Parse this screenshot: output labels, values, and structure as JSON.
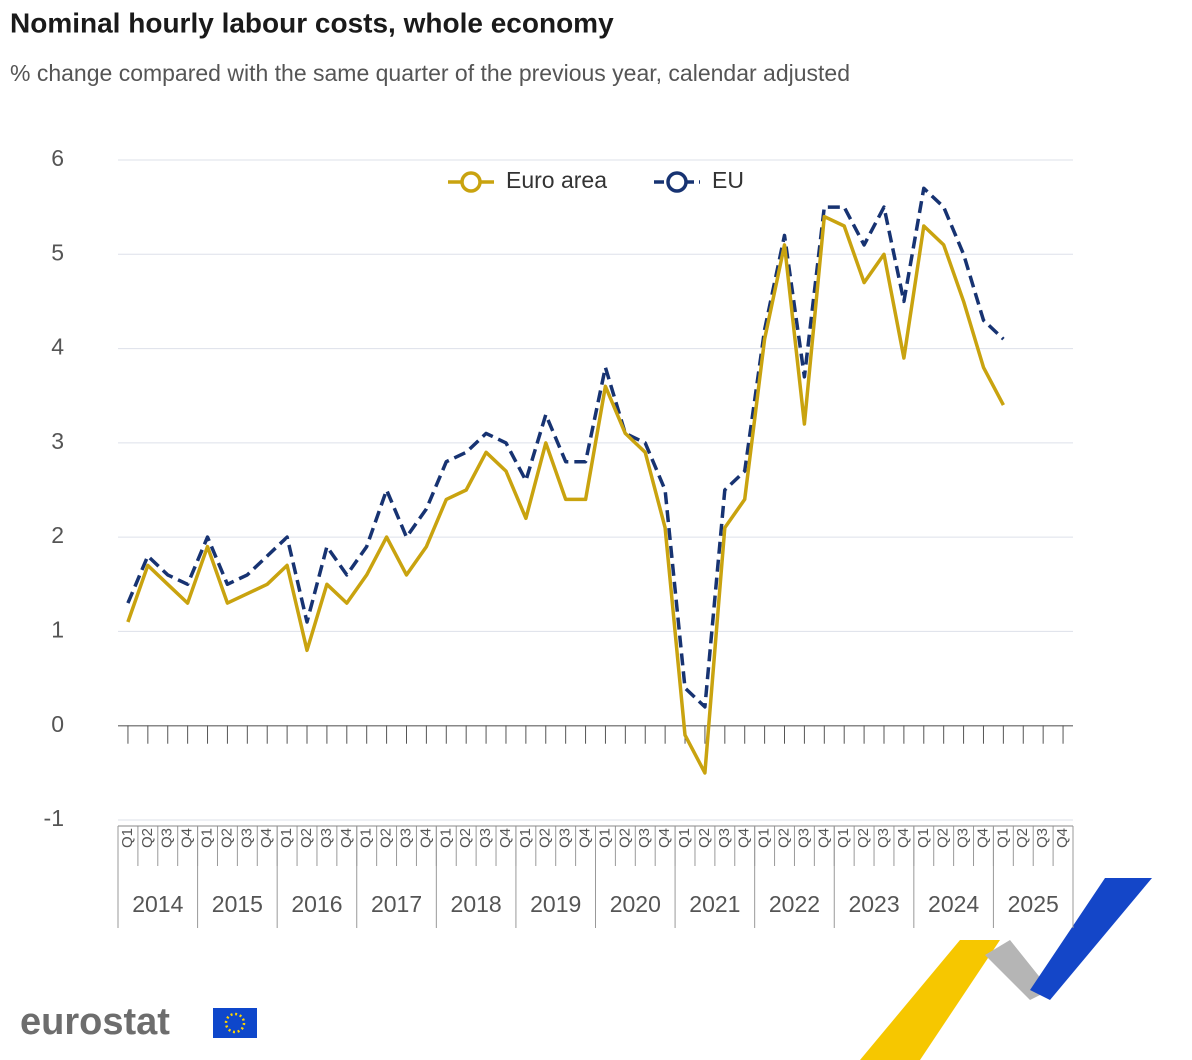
{
  "chart_data": {
    "type": "line",
    "title": "Nominal hourly labour costs, whole economy",
    "subtitle": "% change compared with the same quarter of the previous year, calendar adjusted",
    "categories": [
      "Q1",
      "Q2",
      "Q3",
      "Q4",
      "Q1",
      "Q2",
      "Q3",
      "Q4",
      "Q1",
      "Q2",
      "Q3",
      "Q4",
      "Q1",
      "Q2",
      "Q3",
      "Q4",
      "Q1",
      "Q2",
      "Q3",
      "Q4",
      "Q1",
      "Q2",
      "Q3",
      "Q4",
      "Q1",
      "Q2",
      "Q3",
      "Q4",
      "Q1",
      "Q2",
      "Q3",
      "Q4",
      "Q1",
      "Q2",
      "Q3",
      "Q4",
      "Q1",
      "Q2",
      "Q3",
      "Q4",
      "Q1",
      "Q2",
      "Q3",
      "Q4",
      "Q1",
      "Q2",
      "Q3",
      "Q4"
    ],
    "years": [
      "2014",
      "2015",
      "2016",
      "2017",
      "2018",
      "2019",
      "2020",
      "2021",
      "2022",
      "2023",
      "2024",
      "2025"
    ],
    "series": [
      {
        "name": "Euro area",
        "color": "#c9a30f",
        "dashed": false,
        "values": [
          1.1,
          1.7,
          1.5,
          1.3,
          1.9,
          1.3,
          1.4,
          1.5,
          1.7,
          0.8,
          1.5,
          1.3,
          1.6,
          2.0,
          1.6,
          1.9,
          2.4,
          2.5,
          2.9,
          2.7,
          2.2,
          3.0,
          2.4,
          2.4,
          3.6,
          3.1,
          2.9,
          2.1,
          -0.1,
          -0.5,
          2.1,
          2.4,
          4.1,
          5.1,
          3.2,
          5.4,
          5.3,
          4.7,
          5.0,
          3.9,
          5.3,
          5.1,
          4.5,
          3.8,
          3.4,
          null,
          null,
          null
        ]
      },
      {
        "name": "EU",
        "color": "#173372",
        "dashed": true,
        "values": [
          1.3,
          1.8,
          1.6,
          1.5,
          2.0,
          1.5,
          1.6,
          1.8,
          2.0,
          1.1,
          1.9,
          1.6,
          1.9,
          2.5,
          2.0,
          2.3,
          2.8,
          2.9,
          3.1,
          3.0,
          2.6,
          3.3,
          2.8,
          2.8,
          3.8,
          3.1,
          3.0,
          2.5,
          0.4,
          0.2,
          2.5,
          2.7,
          4.2,
          5.2,
          3.7,
          5.5,
          5.5,
          5.1,
          5.5,
          4.5,
          5.7,
          5.5,
          5.0,
          4.3,
          4.1,
          null,
          null,
          null
        ]
      }
    ],
    "ylim": [
      -1,
      6
    ],
    "yticks": [
      -1,
      0,
      1,
      2,
      3,
      4,
      5,
      6
    ],
    "grid": true,
    "legend": "top"
  },
  "branding": "eurostat"
}
